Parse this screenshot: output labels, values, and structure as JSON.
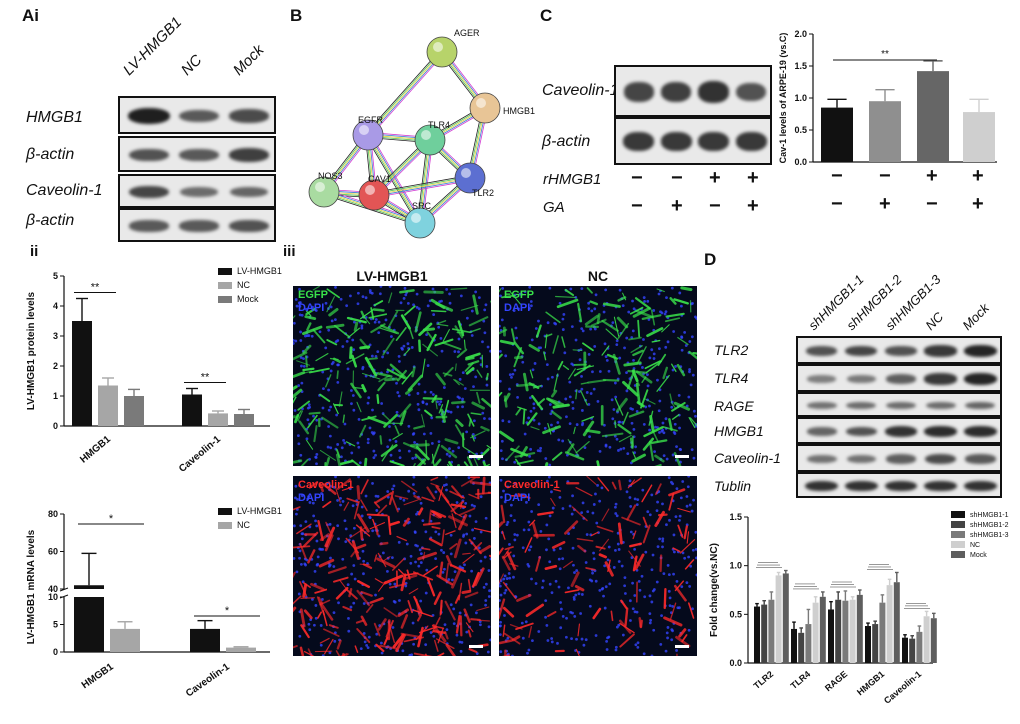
{
  "panel_Ai": {
    "letter": "Ai",
    "lanes": [
      "LV-HMGB1",
      "NC",
      "Mock"
    ],
    "rows": [
      "HMGB1",
      "β-actin",
      "Caveolin-1",
      "β-actin"
    ],
    "band_intensity": [
      [
        1.0,
        0.55,
        0.65
      ],
      [
        0.6,
        0.55,
        0.75
      ],
      [
        0.7,
        0.4,
        0.45
      ],
      [
        0.55,
        0.55,
        0.6
      ]
    ]
  },
  "panel_ii_label": "ii",
  "panel_iii_label": "iii",
  "panel_B": {
    "letter": "B",
    "nodes": [
      {
        "name": "AGER",
        "color": "#b7d36a"
      },
      {
        "name": "HMGB1",
        "color": "#e8c596"
      },
      {
        "name": "EGFR",
        "color": "#a99ae6"
      },
      {
        "name": "TLR4",
        "color": "#6fcf9c"
      },
      {
        "name": "TLR2",
        "color": "#5c6fd1"
      },
      {
        "name": "NOS3",
        "color": "#a9dba1"
      },
      {
        "name": "CAV1",
        "color": "#e25555"
      },
      {
        "name": "SRC",
        "color": "#7fd2de"
      }
    ],
    "edges": [
      [
        "AGER",
        "HMGB1"
      ],
      [
        "AGER",
        "EGFR"
      ],
      [
        "HMGB1",
        "TLR4"
      ],
      [
        "HMGB1",
        "TLR2"
      ],
      [
        "EGFR",
        "TLR4"
      ],
      [
        "EGFR",
        "CAV1"
      ],
      [
        "EGFR",
        "SRC"
      ],
      [
        "EGFR",
        "NOS3"
      ],
      [
        "TLR4",
        "TLR2"
      ],
      [
        "TLR4",
        "CAV1"
      ],
      [
        "TLR4",
        "SRC"
      ],
      [
        "TLR2",
        "SRC"
      ],
      [
        "TLR2",
        "CAV1"
      ],
      [
        "NOS3",
        "CAV1"
      ],
      [
        "NOS3",
        "SRC"
      ],
      [
        "CAV1",
        "SRC"
      ]
    ]
  },
  "panel_C": {
    "letter": "C",
    "rows": [
      "Caveolin-1",
      "β-actin"
    ],
    "band_intensity": [
      [
        0.7,
        0.75,
        0.85,
        0.6
      ],
      [
        0.8,
        0.8,
        0.8,
        0.8
      ]
    ],
    "treatment_rows": [
      {
        "label": "rHMGB1",
        "signs": [
          "−",
          "−",
          "+",
          "+"
        ]
      },
      {
        "label": "GA",
        "signs": [
          "−",
          "+",
          "−",
          "+"
        ]
      }
    ],
    "chart_sign_rows": [
      [
        "−",
        "−",
        "+",
        "+"
      ],
      [
        "−",
        "+",
        "−",
        "+"
      ]
    ]
  },
  "panel_iii": {
    "columns": [
      "LV-HMGB1",
      "NC"
    ],
    "top_labels": [
      "EGFP",
      "DAPI"
    ],
    "bottom_labels": [
      "Caveolin-1",
      "DAPI"
    ],
    "top_color": "#39e14a",
    "bottom_color": "#ff2a2a",
    "dapi_color": "#3344ff"
  },
  "panel_D": {
    "letter": "D",
    "lanes": [
      "shHMGB1-1",
      "shHMGB1-2",
      "shHMGB1-3",
      "NC",
      "Mock"
    ],
    "rows": [
      "TLR2",
      "TLR4",
      "RAGE",
      "HMGB1",
      "Caveolin-1",
      "Tublin"
    ],
    "band_intensity": [
      [
        0.6,
        0.7,
        0.6,
        0.8,
        0.95
      ],
      [
        0.25,
        0.3,
        0.5,
        0.8,
        0.95
      ],
      [
        0.35,
        0.4,
        0.4,
        0.4,
        0.45
      ],
      [
        0.45,
        0.6,
        0.85,
        0.9,
        0.9
      ],
      [
        0.35,
        0.35,
        0.5,
        0.65,
        0.55
      ],
      [
        0.85,
        0.85,
        0.85,
        0.85,
        0.85
      ]
    ]
  },
  "chart_data": [
    {
      "id": "ii-protein",
      "type": "bar",
      "categories": [
        "HMGB1",
        "Caveolin-1"
      ],
      "ylabel": "LV-HMGB1 protein levels",
      "ylim": [
        0,
        5
      ],
      "yticks": [
        "0",
        "1",
        "2",
        "3",
        "4",
        "5"
      ],
      "series": [
        {
          "name": "LV-HMGB1",
          "color": "#111111",
          "values": [
            3.5,
            1.05
          ],
          "errors": [
            0.75,
            0.2
          ]
        },
        {
          "name": "NC",
          "color": "#a6a6a6",
          "values": [
            1.35,
            0.42
          ],
          "errors": [
            0.25,
            0.08
          ]
        },
        {
          "name": "Mock",
          "color": "#7a7a7a",
          "values": [
            1.0,
            0.4
          ],
          "errors": [
            0.22,
            0.15
          ]
        }
      ],
      "significance": [
        {
          "label": "**",
          "category": 0,
          "from": 0,
          "to": 1
        },
        {
          "label": "**",
          "category": 1,
          "from": 0,
          "to": 1
        }
      ],
      "legend": "top-right"
    },
    {
      "id": "ii-mrna",
      "type": "bar",
      "categories": [
        "HMGB1",
        "Caveolin-1"
      ],
      "ylabel": "LV-HMGB1 mRNA levels",
      "yticks_lower": [
        "0",
        "5",
        "10"
      ],
      "yticks_upper": [
        "40",
        "60",
        "80"
      ],
      "axis_break": [
        10,
        40
      ],
      "series": [
        {
          "name": "LV-HMGB1",
          "color": "#111111",
          "values": [
            42,
            4.2
          ],
          "errors": [
            17,
            1.5
          ]
        },
        {
          "name": "NC",
          "color": "#a6a6a6",
          "values": [
            4.2,
            0.8
          ],
          "errors": [
            1.3,
            0.15
          ]
        }
      ],
      "significance": [
        {
          "label": "*",
          "category": 0,
          "from": 0,
          "to": 1
        },
        {
          "label": "*",
          "category": 1,
          "from": 0,
          "to": 1
        }
      ],
      "legend": "top-right"
    },
    {
      "id": "C-cav1",
      "type": "bar",
      "ylabel": "Cav-1 levels of ARPE-19 (vs.C)",
      "ylim": [
        0,
        2.0
      ],
      "yticks": [
        "0.0",
        "0.5",
        "1.0",
        "1.5",
        "2.0"
      ],
      "values": [
        0.85,
        0.95,
        1.42,
        0.78
      ],
      "errors": [
        0.13,
        0.18,
        0.16,
        0.2
      ],
      "colors": [
        "#111111",
        "#8f8f8f",
        "#666666",
        "#cfcfcf"
      ],
      "significance": [
        {
          "label": "**",
          "from": 0,
          "to": 2
        }
      ]
    },
    {
      "id": "D-fold",
      "type": "bar",
      "categories": [
        "TLR2",
        "TLR4",
        "RAGE",
        "HMGB1",
        "Caveolin-1"
      ],
      "ylabel": "Fold change(vs.NC)",
      "ylim": [
        0,
        1.5
      ],
      "yticks": [
        "0.0",
        "0.5",
        "1.0",
        "1.5"
      ],
      "series": [
        {
          "name": "shHMGB1-1",
          "color": "#111111",
          "values": [
            0.58,
            0.35,
            0.55,
            0.38,
            0.26
          ],
          "errors": [
            0.03,
            0.07,
            0.08,
            0.03,
            0.03
          ]
        },
        {
          "name": "shHMGB1-2",
          "color": "#444444",
          "values": [
            0.6,
            0.31,
            0.65,
            0.4,
            0.25
          ],
          "errors": [
            0.04,
            0.05,
            0.08,
            0.03,
            0.03
          ]
        },
        {
          "name": "shHMGB1-3",
          "color": "#7a7a7a",
          "values": [
            0.65,
            0.4,
            0.64,
            0.62,
            0.32
          ],
          "errors": [
            0.08,
            0.15,
            0.1,
            0.08,
            0.06
          ]
        },
        {
          "name": "NC",
          "color": "#cfcfcf",
          "values": [
            0.9,
            0.62,
            0.65,
            0.8,
            0.48
          ],
          "errors": [
            0.03,
            0.06,
            0.03,
            0.06,
            0.05
          ]
        },
        {
          "name": "Mock",
          "color": "#5e5e5e",
          "values": [
            0.92,
            0.68,
            0.7,
            0.83,
            0.46
          ],
          "errors": [
            0.03,
            0.05,
            0.05,
            0.1,
            0.05
          ]
        }
      ],
      "legend": "top-right"
    }
  ]
}
